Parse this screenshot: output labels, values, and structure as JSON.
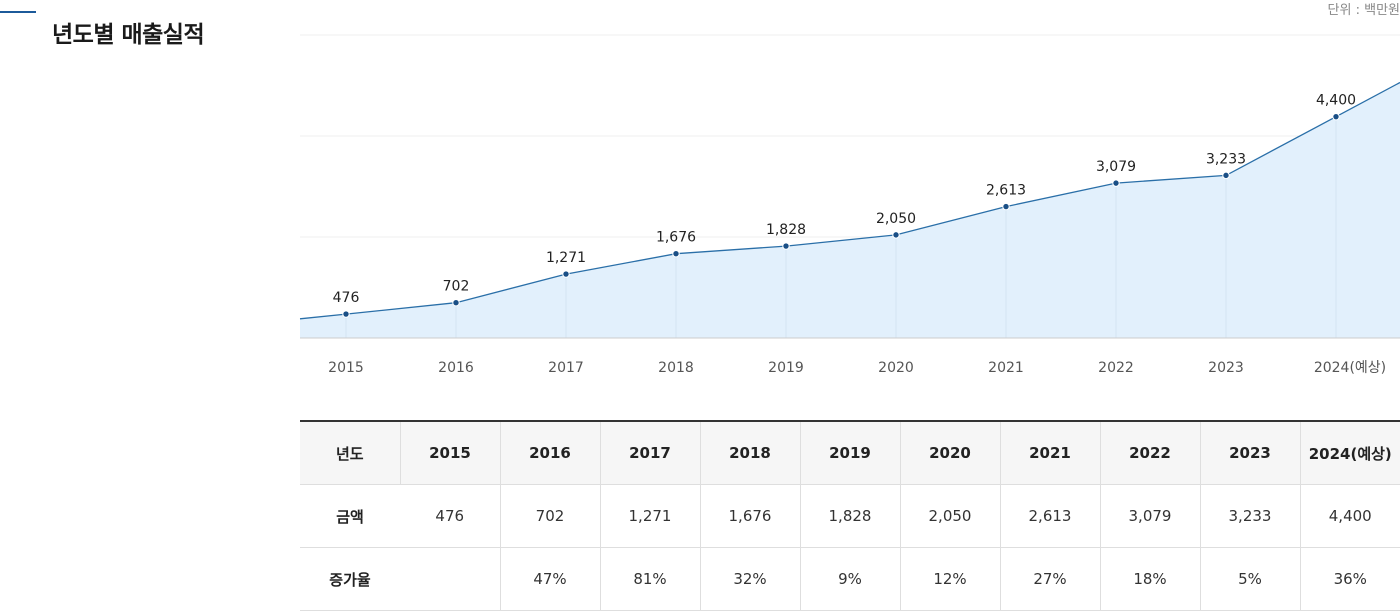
{
  "header": {
    "title": "년도별 매출실적",
    "unit": "단위 : 백만원"
  },
  "colors": {
    "accent": "#1c5a9a",
    "line": "#2a6fa8",
    "area": "#e2f0fc",
    "point": "#1a4f86"
  },
  "chart_data": {
    "type": "area",
    "categories": [
      "2015",
      "2016",
      "2017",
      "2018",
      "2019",
      "2020",
      "2021",
      "2022",
      "2023",
      "2024(예상)"
    ],
    "values": [
      476,
      702,
      1271,
      1676,
      1828,
      2050,
      2613,
      3079,
      3233,
      4400
    ],
    "data_labels": [
      "476",
      "702",
      "1,271",
      "1,676",
      "1,828",
      "2,050",
      "2,613",
      "3,079",
      "3,233",
      "4,400"
    ],
    "grid": true,
    "legend": "none"
  },
  "table": {
    "header_label": "년도",
    "years": [
      "2015",
      "2016",
      "2017",
      "2018",
      "2019",
      "2020",
      "2021",
      "2022",
      "2023",
      "2024(예상)"
    ],
    "rows": [
      {
        "label": "금액",
        "cells": [
          "476",
          "702",
          "1,271",
          "1,676",
          "1,828",
          "2,050",
          "2,613",
          "3,079",
          "3,233",
          "4,400"
        ]
      },
      {
        "label": "증가율",
        "cells": [
          "",
          "47%",
          "81%",
          "32%",
          "9%",
          "12%",
          "27%",
          "18%",
          "5%",
          "36%"
        ]
      }
    ]
  }
}
